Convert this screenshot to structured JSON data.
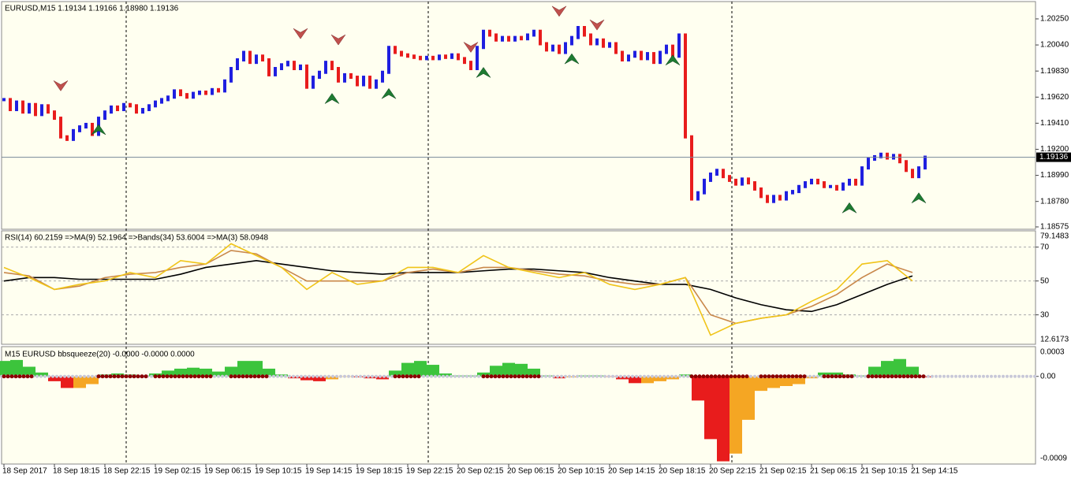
{
  "chart_data": [
    {
      "type": "ohlc",
      "title": "EURUSD,M15  1.19134 1.19166 1.18980 1.19136",
      "values": [
        1.196,
        1.1952,
        1.1958,
        1.195,
        1.1956,
        1.1948,
        1.1955,
        1.195,
        1.1945,
        1.193,
        1.1928,
        1.1935,
        1.1938,
        1.194,
        1.1932,
        1.1945,
        1.195,
        1.1954,
        1.1952,
        1.1956,
        1.1955,
        1.195,
        1.1952,
        1.1955,
        1.1958,
        1.196,
        1.1962,
        1.1967,
        1.1964,
        1.1962,
        1.1965,
        1.1966,
        1.1965,
        1.1968,
        1.1967,
        1.1975,
        1.1985,
        1.1992,
        1.1998,
        1.199,
        1.1995,
        1.1992,
        1.198,
        1.1985,
        1.1988,
        1.199,
        1.1985,
        1.1987,
        1.197,
        1.1978,
        1.1982,
        1.199,
        1.1985,
        1.1975,
        1.198,
        1.1978,
        1.1972,
        1.1978,
        1.197,
        1.1975,
        1.1982,
        1.2002,
        1.1998,
        1.1996,
        1.1995,
        1.1994,
        1.1993,
        1.1994,
        1.1993,
        1.1995,
        1.1994,
        1.1996,
        1.1993,
        1.199,
        1.1985,
        1.2002,
        1.2015,
        1.2012,
        1.2008,
        1.201,
        1.2008,
        1.201,
        1.2009,
        1.2012,
        1.2015,
        1.2005,
        1.2,
        1.2003,
        1.1998,
        1.2005,
        1.201,
        1.2018,
        1.2012,
        1.2005,
        1.2008,
        1.2003,
        1.2005,
        1.1998,
        1.1992,
        1.1995,
        1.1998,
        1.1993,
        1.1997,
        1.199,
        1.1998,
        1.2003,
        1.1995,
        1.2012,
        1.193,
        1.188,
        1.1885,
        1.1895,
        1.19,
        1.1903,
        1.1898,
        1.1895,
        1.1892,
        1.1896,
        1.1893,
        1.1888,
        1.1882,
        1.1878,
        1.1882,
        1.188,
        1.1885,
        1.1886,
        1.189,
        1.1893,
        1.1895,
        1.1893,
        1.189,
        1.189,
        1.1888,
        1.1892,
        1.1895,
        1.1892,
        1.1905,
        1.1912,
        1.1914,
        1.1916,
        1.1913,
        1.1915,
        1.191,
        1.1903,
        1.1898,
        1.1905,
        1.19136
      ],
      "up_color": "#1f1fe0",
      "down_color": "#e81c1c",
      "current_price": 1.19136,
      "ylim": [
        1.18556,
        1.20383
      ],
      "yticks": [
        {
          "value": 1.2025,
          "label": "1.20250"
        },
        {
          "value": 1.2004,
          "label": "1.20040"
        },
        {
          "value": 1.1983,
          "label": "1.19830"
        },
        {
          "value": 1.1962,
          "label": "1.19620"
        },
        {
          "value": 1.1941,
          "label": "1.19410"
        },
        {
          "value": 1.192,
          "label": "1.19200"
        },
        {
          "value": 1.1899,
          "label": "1.18990"
        },
        {
          "value": 1.1878,
          "label": "1.18780"
        },
        1.18575
      ],
      "x_labels": [
        "18 Sep 2017",
        "18 Sep 18:15",
        "18 Sep 22:15",
        "19 Sep 02:15",
        "19 Sep 06:15",
        "19 Sep 10:15",
        "19 Sep 14:15",
        "19 Sep 18:15",
        "19 Sep 22:15",
        "20 Sep 02:15",
        "20 Sep 06:15",
        "20 Sep 10:15",
        "20 Sep 14:15",
        "20 Sep 18:15",
        "20 Sep 22:15",
        "21 Sep 02:15",
        "21 Sep 06:15",
        "21 Sep 10:15",
        "21 Sep 14:15"
      ],
      "sell_color": "#c0504d",
      "buy_color": "#1e7b32",
      "sell_signals": [
        {
          "index": 9,
          "value": 1.1967
        },
        {
          "index": 47,
          "value": 1.2009
        },
        {
          "index": 53,
          "value": 1.2004
        },
        {
          "index": 74,
          "value": 1.1998
        },
        {
          "index": 88,
          "value": 1.2027
        },
        {
          "index": 94,
          "value": 1.2016
        }
      ],
      "buy_signals": [
        {
          "index": 15,
          "value": 1.194
        },
        {
          "index": 52,
          "value": 1.1965
        },
        {
          "index": 61,
          "value": 1.1969
        },
        {
          "index": 76,
          "value": 1.1986
        },
        {
          "index": 90,
          "value": 1.1997
        },
        {
          "index": 106,
          "value": 1.1996
        },
        {
          "index": 134,
          "value": 1.1877
        },
        {
          "index": 145,
          "value": 1.1885
        }
      ]
    },
    {
      "type": "line",
      "title": "RSI(14) 60.2159  =>MA(9) 52.1964  =>Bands(34) 53.6004  =>MA(3) 58.0948",
      "x": [
        0,
        4,
        8,
        12,
        16,
        20,
        24,
        28,
        32,
        36,
        40,
        44,
        48,
        52,
        56,
        60,
        64,
        68,
        72,
        76,
        80,
        84,
        88,
        92,
        96,
        100,
        104,
        108,
        112,
        116,
        120,
        124,
        128,
        132,
        136,
        140,
        144
      ],
      "series": [
        {
          "color": "#000000",
          "values": [
            50,
            52,
            52,
            51,
            51,
            51,
            51,
            54,
            58,
            60,
            62,
            60,
            58,
            56,
            55,
            54,
            55,
            55,
            55,
            56,
            57,
            57,
            56,
            55,
            52,
            50,
            48,
            48,
            45,
            40,
            36,
            33,
            32,
            36,
            42,
            48,
            53
          ]
        },
        {
          "color": "#c8874a",
          "values": [
            55,
            53,
            45,
            47,
            52,
            54,
            55,
            58,
            60,
            68,
            66,
            58,
            50,
            50,
            50,
            50,
            55,
            57,
            55,
            58,
            58,
            56,
            54,
            53,
            50,
            48,
            48,
            52,
            30,
            25,
            28,
            30,
            35,
            42,
            52,
            60,
            55
          ]
        },
        {
          "color": "#f0c419",
          "values": [
            58,
            52,
            45,
            48,
            50,
            55,
            52,
            62,
            60,
            72,
            65,
            58,
            45,
            55,
            48,
            50,
            58,
            58,
            55,
            65,
            58,
            55,
            52,
            55,
            48,
            45,
            48,
            52,
            18,
            25,
            28,
            30,
            38,
            45,
            60,
            62,
            50
          ]
        }
      ],
      "ylim": [
        12.6173,
        79.1483
      ],
      "yticks": [
        30,
        50,
        70
      ],
      "grid": true,
      "limit_labels": true
    },
    {
      "type": "bar",
      "title": "M15 EURUSD bbsqueeze(20) -0.0000 -0.0000 0.0000",
      "x": [
        0,
        2,
        4,
        6,
        8,
        10,
        12,
        14,
        16,
        18,
        20,
        22,
        24,
        26,
        28,
        30,
        32,
        34,
        36,
        38,
        40,
        42,
        44,
        46,
        48,
        50,
        52,
        54,
        56,
        58,
        60,
        62,
        64,
        66,
        68,
        70,
        72,
        74,
        76,
        78,
        80,
        82,
        84,
        86,
        88,
        90,
        92,
        94,
        96,
        98,
        100,
        102,
        104,
        106,
        108,
        110,
        112,
        114,
        116,
        118,
        120,
        122,
        124,
        126,
        128,
        130,
        132,
        134,
        136,
        138,
        140,
        142,
        144,
        146
      ],
      "values": [
        0.00016,
        0.00017,
        0.0001,
        4e-05,
        -5e-05,
        -0.00012,
        -0.00012,
        -8e-05,
        2e-05,
        3e-05,
        2e-05,
        1e-05,
        3e-05,
        6e-05,
        8e-05,
        9e-05,
        8e-05,
        5e-05,
        0.0001,
        0.00016,
        0.00016,
        8e-05,
        2e-05,
        -2e-05,
        -4e-05,
        -5e-05,
        -3e-05,
        0,
        -1e-05,
        -2e-05,
        -3e-05,
        6e-05,
        0.00014,
        0.00016,
        0.00012,
        3e-05,
        1e-05,
        1e-05,
        4e-05,
        0.00011,
        0.00014,
        0.00013,
        8e-05,
        1e-05,
        -2e-05,
        -1e-05,
        1e-05,
        1e-05,
        0,
        -3e-05,
        -7e-05,
        -7e-05,
        -5e-05,
        -3e-05,
        2e-05,
        -0.00025,
        -0.00065,
        -0.00088,
        -0.0008,
        -0.00045,
        -0.00015,
        -0.00012,
        -0.0001,
        -8e-05,
        -2e-05,
        4e-05,
        4e-05,
        2e-05,
        1e-05,
        0.0001,
        0.00016,
        0.00018,
        0.0001,
        -1e-05
      ],
      "up_color": "#3cc43c",
      "falling_color": "#e81c1c",
      "rising_color": "#f5a623",
      "squeeze_color": "#8b0000",
      "squeeze_ranges": [
        [
          0,
          5
        ],
        [
          15,
          23
        ],
        [
          24,
          33
        ],
        [
          36,
          42
        ],
        [
          62,
          66
        ],
        [
          76,
          85
        ],
        [
          109,
          118
        ],
        [
          120,
          127
        ],
        [
          130,
          135
        ],
        [
          137,
          146
        ]
      ],
      "ylim": [
        -0.0009,
        0.0003
      ],
      "yticks": [
        {
          "value": 0,
          "label": "0.00"
        }
      ],
      "limit_labels": true
    }
  ]
}
